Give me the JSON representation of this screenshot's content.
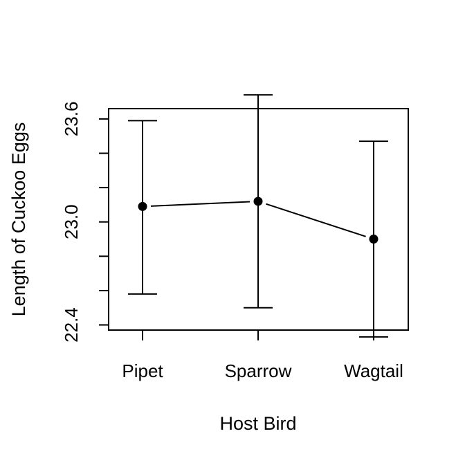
{
  "chart_data": {
    "type": "line",
    "subtype": "error-bar plot with means",
    "title": "",
    "xlabel": "Host Bird",
    "ylabel": "Length of Cuckoo Eggs",
    "categories": [
      "Pipet",
      "Sparrow",
      "Wagtail"
    ],
    "series": [
      {
        "values": [
          23.09,
          23.12,
          22.9
        ],
        "lower": [
          22.58,
          22.5,
          22.33
        ],
        "upper": [
          23.59,
          23.74,
          23.47
        ]
      }
    ],
    "ylim": [
      22.37,
      23.66
    ],
    "yticks": [
      22.4,
      22.6,
      22.8,
      23.0,
      23.2,
      23.4,
      23.6
    ],
    "ytick_labels": [
      "22.4",
      "",
      "",
      "23.0",
      "",
      "",
      "23.6"
    ],
    "grid": false,
    "legend": "none",
    "colors": {
      "points": "#000000",
      "lines": "#000000",
      "background": "#ffffff"
    }
  }
}
